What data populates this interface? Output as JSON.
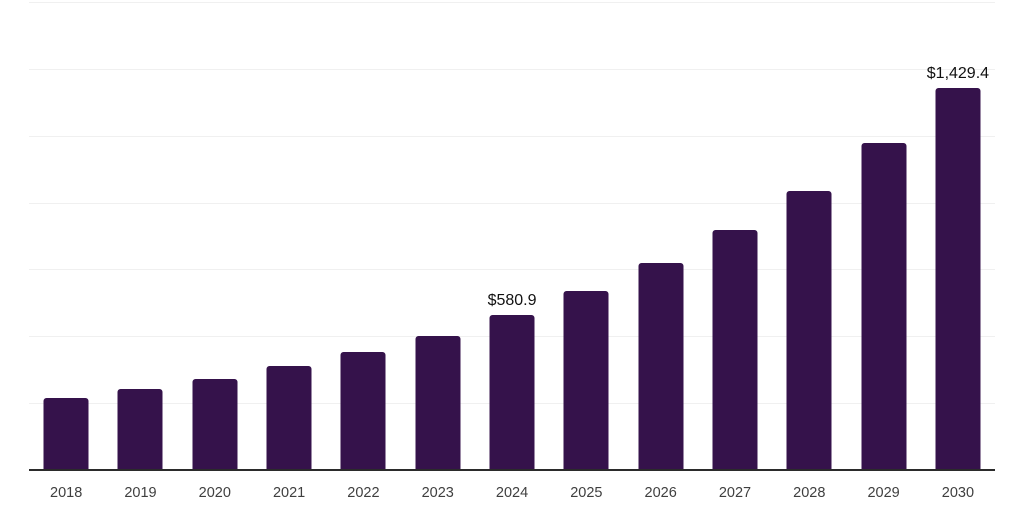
{
  "chart_data": {
    "type": "bar",
    "title": "",
    "xlabel": "",
    "ylabel": "",
    "categories": [
      "2018",
      "2019",
      "2020",
      "2021",
      "2022",
      "2023",
      "2024",
      "2025",
      "2026",
      "2027",
      "2028",
      "2029",
      "2030"
    ],
    "values": [
      271,
      303.5,
      342,
      389,
      439.5,
      501.5,
      580.9,
      670,
      774,
      899,
      1045,
      1221,
      1429.4
    ],
    "data_labels": [
      "",
      "",
      "",
      "",
      "",
      "",
      "$580.9",
      "",
      "",
      "",
      "",
      "",
      "$1,429.4"
    ],
    "ylim": [
      0,
      1750
    ],
    "gridline_step": 250,
    "grid": "horizontal",
    "legend": "none",
    "y_tick_labels_visible": false,
    "colors": {
      "bar": "#35124B",
      "background": "#ffffff",
      "gridline": "#f0f0f0",
      "axis_line": "#2b2b2b",
      "tick_label": "#3f3f3f",
      "data_label": "#111111"
    }
  }
}
